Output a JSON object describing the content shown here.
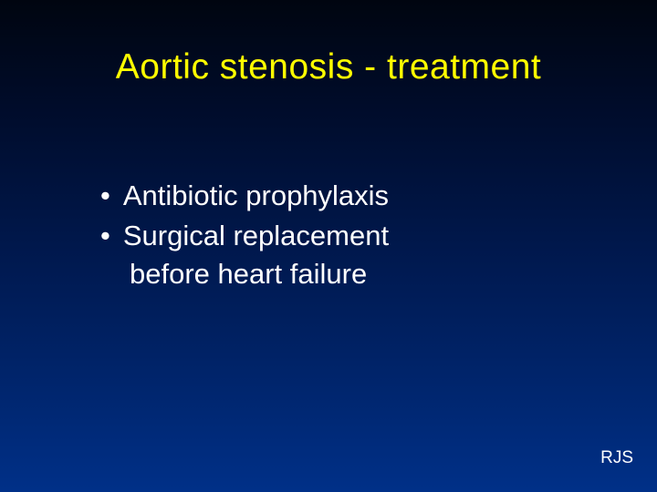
{
  "colors": {
    "title_color": "#fffc00",
    "text_color": "#ffffff",
    "background_gradient_top": "#000510",
    "background_gradient_bottom": "#003088"
  },
  "typography": {
    "title_fontsize": 39,
    "bullet_fontsize": 31,
    "footer_fontsize": 19,
    "font_family": "Arial"
  },
  "title": "Aortic stenosis - treatment",
  "bullets": [
    {
      "text": "Antibiotic prophylaxis"
    },
    {
      "text": "Surgical replacement",
      "continue": "before heart failure"
    }
  ],
  "footer": "RJS"
}
